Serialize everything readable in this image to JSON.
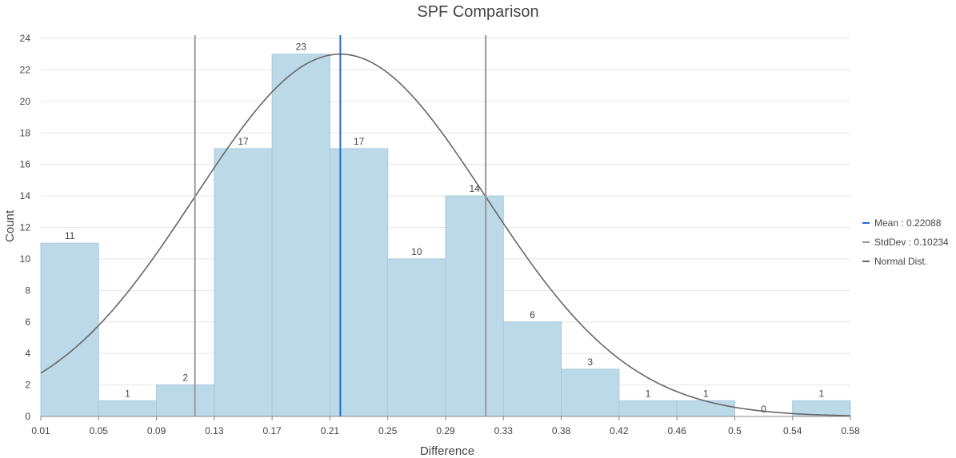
{
  "chart_data": {
    "type": "bar",
    "title": "SPF Comparison",
    "xlabel": "Difference",
    "ylabel": "Count",
    "xlim": [
      0.01,
      0.58
    ],
    "ylim": [
      0,
      24
    ],
    "y_ticks": [
      0,
      2,
      4,
      6,
      8,
      10,
      12,
      14,
      16,
      18,
      20,
      22,
      24
    ],
    "x_tick_labels": [
      "0.01",
      "0.05",
      "0.09",
      "0.13",
      "0.17",
      "0.21",
      "0.25",
      "0.29",
      "0.33",
      "0.38",
      "0.42",
      "0.46",
      "0.5",
      "0.54",
      "0.58"
    ],
    "values": [
      11,
      1,
      2,
      17,
      23,
      17,
      10,
      14,
      6,
      3,
      1,
      1,
      0,
      1
    ],
    "mean": 0.22088,
    "stddev": 0.10234,
    "normal_peak": 23,
    "legend": [
      {
        "label": "Mean : 0.22088",
        "color": "#1a6fd6"
      },
      {
        "label": "StdDev : 0.10234",
        "color": "#999999"
      },
      {
        "label": "Normal Dist.",
        "color": "#666666"
      }
    ],
    "colors": {
      "bar_fill": "#bcd9e8",
      "bar_stroke": "#a6cbe0",
      "mean_line": "#1a6fd6",
      "std_line": "#999999",
      "curve": "#666666",
      "grid": "#e6e6e6"
    }
  }
}
